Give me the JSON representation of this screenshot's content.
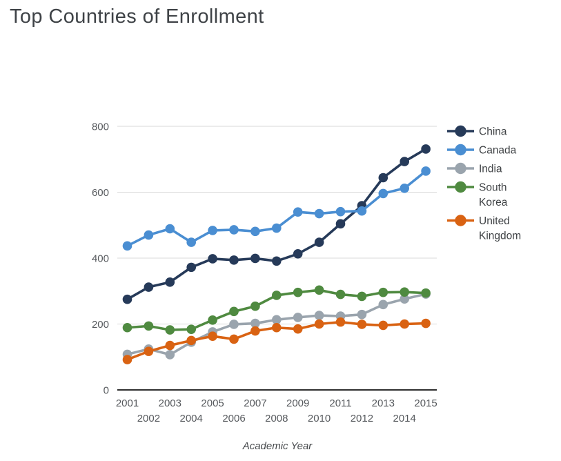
{
  "page": {
    "title": "Top Countries of Enrollment"
  },
  "colors": {
    "background": "#ffffff",
    "grid_line": "#d9d9d9",
    "axis_line": "#2e2e2e",
    "tick_text": "#56595d",
    "title_text": "#3f4347",
    "legend_text": "#3f4245"
  },
  "chart_data": {
    "type": "line",
    "title": "Top Countries of Enrollment",
    "xlabel": "Academic Year",
    "ylabel": "",
    "x": [
      2001,
      2002,
      2003,
      2004,
      2005,
      2006,
      2007,
      2008,
      2009,
      2010,
      2011,
      2012,
      2013,
      2014,
      2015
    ],
    "x_tick_labels": [
      "2001",
      "2002",
      "2003",
      "2004",
      "2005",
      "2006",
      "2007",
      "2008",
      "2009",
      "2010",
      "2011",
      "2012",
      "2013",
      "2014",
      "2015"
    ],
    "x_tick_layout": "staggered-two-rows",
    "yticks": [
      0,
      200,
      400,
      600,
      800
    ],
    "ylim": [
      0,
      800
    ],
    "grid": true,
    "legend_position": "right",
    "marker": "circle",
    "series": [
      {
        "name": "China",
        "legend_lines": [
          "China"
        ],
        "color": "#263a59",
        "values": [
          275,
          312,
          327,
          372,
          398,
          394,
          399,
          391,
          413,
          448,
          504,
          559,
          644,
          693,
          731
        ]
      },
      {
        "name": "Canada",
        "legend_lines": [
          "Canada"
        ],
        "color": "#4a8ed2",
        "values": [
          437,
          470,
          489,
          448,
          484,
          486,
          481,
          491,
          540,
          535,
          541,
          543,
          596,
          612,
          664
        ]
      },
      {
        "name": "India",
        "legend_lines": [
          "India"
        ],
        "color": "#9aa4ad",
        "values": [
          108,
          124,
          107,
          145,
          176,
          199,
          202,
          213,
          220,
          226,
          224,
          229,
          259,
          276,
          291
        ]
      },
      {
        "name": "South Korea",
        "legend_lines": [
          "South",
          "Korea"
        ],
        "color": "#4f8a40",
        "values": [
          189,
          194,
          182,
          184,
          212,
          238,
          254,
          287,
          296,
          303,
          290,
          284,
          296,
          297,
          294
        ]
      },
      {
        "name": "United Kingdom",
        "legend_lines": [
          "United",
          "Kingdom"
        ],
        "color": "#d96212",
        "values": [
          92,
          117,
          135,
          150,
          163,
          154,
          179,
          189,
          185,
          200,
          206,
          199,
          196,
          200,
          202
        ]
      }
    ]
  }
}
